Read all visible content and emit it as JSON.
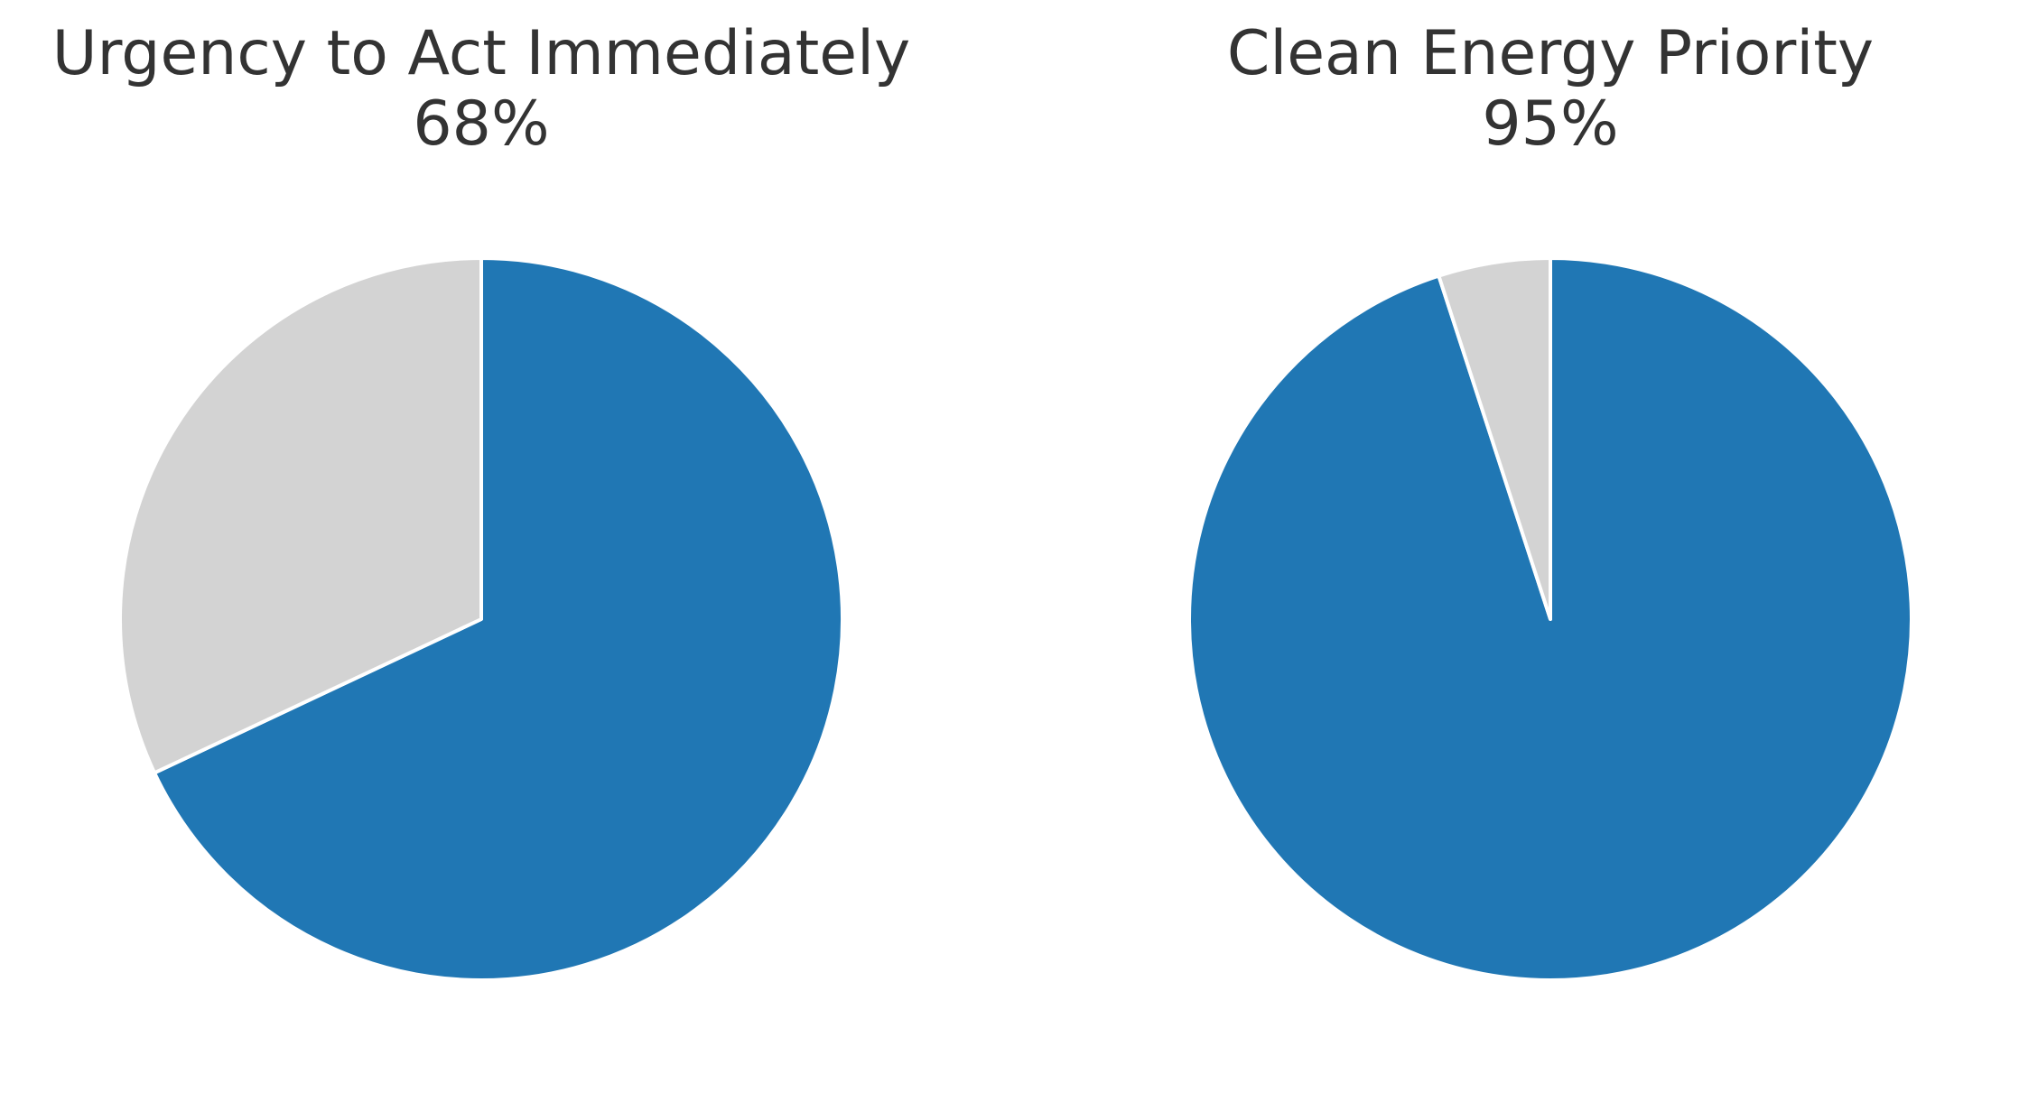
{
  "chart_data": [
    {
      "type": "pie",
      "title": "Urgency to Act Immediately",
      "subtitle": "68%",
      "slices": [
        {
          "value": 68,
          "color": "#2077b4"
        },
        {
          "value": 32,
          "color": "#d3d3d3"
        }
      ]
    },
    {
      "type": "pie",
      "title": "Clean Energy Priority",
      "subtitle": "95%",
      "slices": [
        {
          "value": 95,
          "color": "#2077b4"
        },
        {
          "value": 5,
          "color": "#d3d3d3"
        }
      ]
    }
  ]
}
